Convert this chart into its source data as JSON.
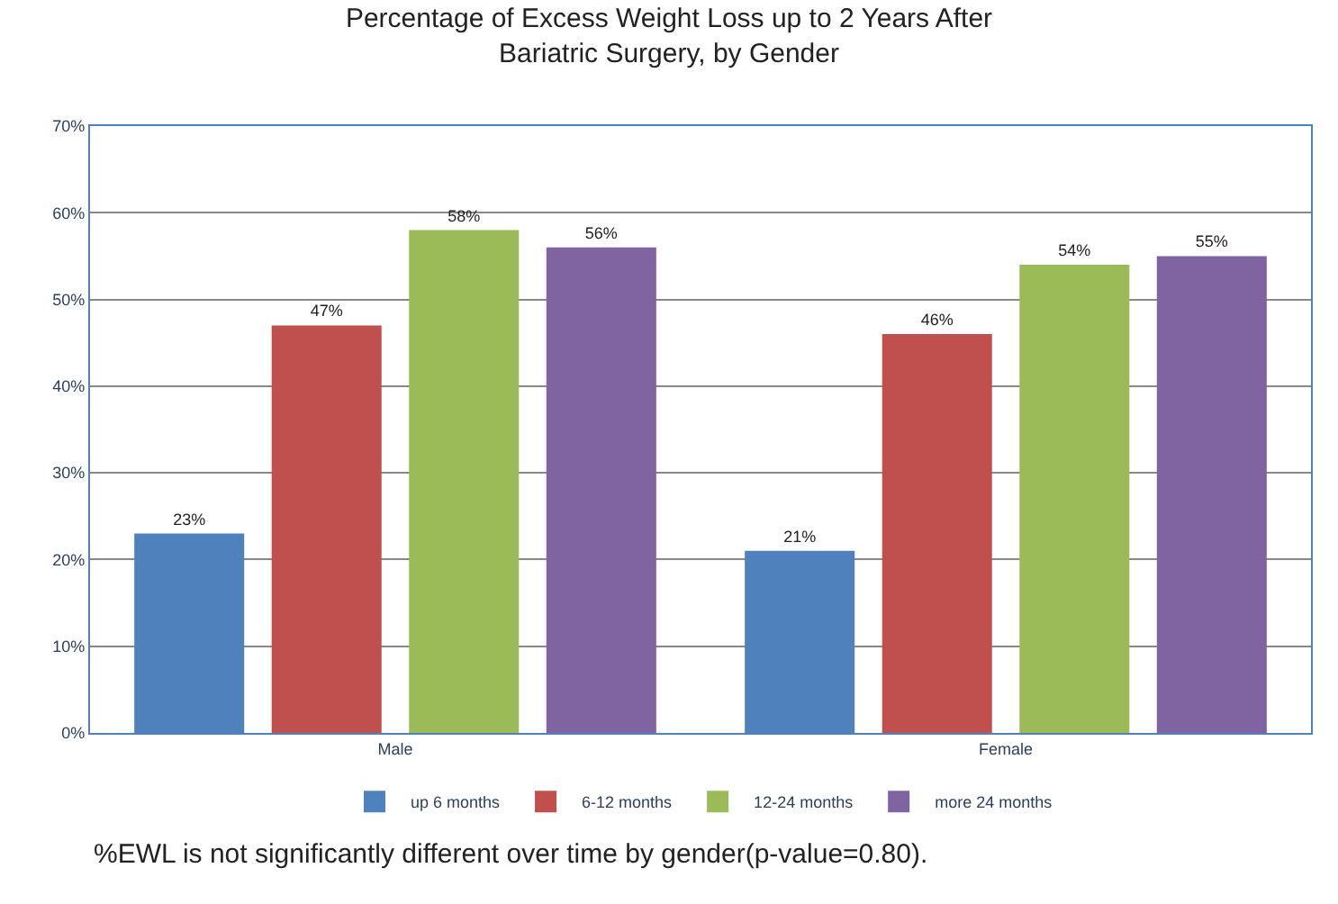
{
  "chart_data": {
    "type": "bar",
    "title": "Percentage of Excess Weight Loss up to 2 Years After Bariatric Surgery, by Gender",
    "categories": [
      "Male",
      "Female"
    ],
    "series": [
      {
        "name": "up 6 months",
        "color": "#4f81bd",
        "values": [
          23,
          21
        ],
        "value_labels": [
          "23%",
          "21%"
        ]
      },
      {
        "name": "6-12 months",
        "color": "#c0504d",
        "values": [
          47,
          46
        ],
        "value_labels": [
          "47%",
          "46%"
        ]
      },
      {
        "name": "12-24 months",
        "color": "#9bbb59",
        "values": [
          58,
          54
        ],
        "value_labels": [
          "58%",
          "54%"
        ]
      },
      {
        "name": "more 24 months",
        "color": "#8064a2",
        "values": [
          56,
          55
        ],
        "value_labels": [
          "56%",
          "55%"
        ]
      }
    ],
    "ylim": [
      0,
      70
    ],
    "yticks": [
      {
        "value": 0,
        "label": "0%"
      },
      {
        "value": 10,
        "label": "10%"
      },
      {
        "value": 20,
        "label": "20%"
      },
      {
        "value": 30,
        "label": "30%"
      },
      {
        "value": 40,
        "label": "40%"
      },
      {
        "value": 50,
        "label": "50%"
      },
      {
        "value": 60,
        "label": "60%"
      },
      {
        "value": 70,
        "label": "70%"
      }
    ],
    "grid": "y",
    "legend": "bottom",
    "annotations": [
      "%EWL is not significantly different over time by gender(p-value=0.80)."
    ]
  }
}
